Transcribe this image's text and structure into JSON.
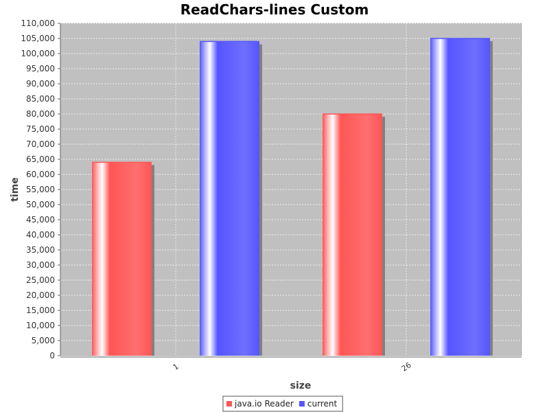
{
  "chart_data": {
    "type": "bar",
    "title": "ReadChars-lines Custom",
    "xlabel": "size",
    "ylabel": "time",
    "categories": [
      "1",
      "26"
    ],
    "series": [
      {
        "name": "java.io Reader",
        "values": [
          64000,
          80000
        ],
        "color": "#ff5555"
      },
      {
        "name": "current",
        "values": [
          104000,
          105000
        ],
        "color": "#5555ff"
      }
    ],
    "ylim": [
      0,
      110000
    ],
    "ytick_step": 5000,
    "grid": true,
    "legend": "bottom-center",
    "plot_background": "#c0c0c0"
  }
}
